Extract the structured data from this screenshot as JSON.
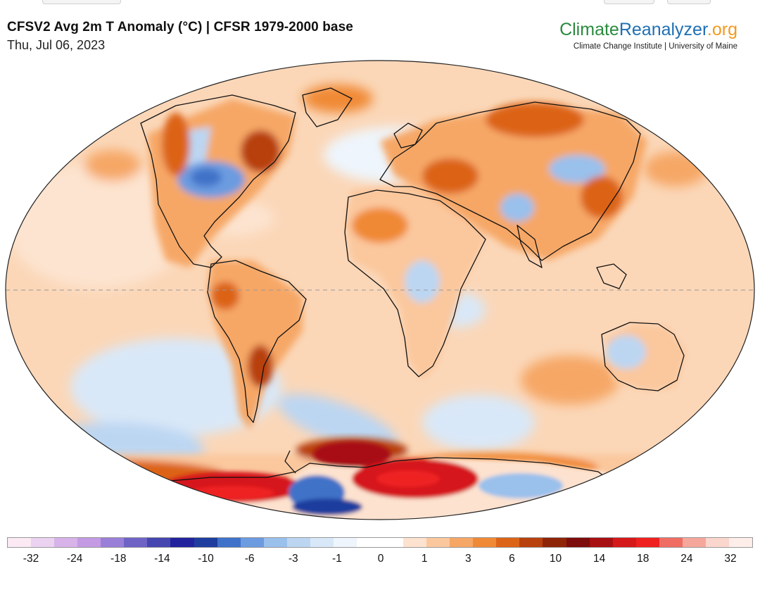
{
  "header": {
    "title": "CFSV2 Avg 2m T Anomaly (°C) | CFSR 1979-2000 base",
    "date": "Thu, Jul 06, 2023"
  },
  "brand": {
    "logo_part1": "Climate",
    "logo_part2": "Reanalyzer",
    "logo_part3": ".org",
    "tagline": "Climate Change Institute | University of Maine"
  },
  "colorbar": {
    "colors": [
      "#fbe9f3",
      "#ead2f0",
      "#d7b3ea",
      "#c39ae3",
      "#9a7fd8",
      "#6f64c6",
      "#4646b0",
      "#22239c",
      "#1e3d9e",
      "#3f72c8",
      "#6c9be0",
      "#9ac0ec",
      "#bcd6f2",
      "#d9e8f8",
      "#eef5fc",
      "#ffffff",
      "#ffffff",
      "#fde2cf",
      "#fbc79d",
      "#f6a766",
      "#f08936",
      "#dc6418",
      "#b8410e",
      "#8e2508",
      "#7d0c0c",
      "#a80f12",
      "#d5181a",
      "#ef2020",
      "#ef6d63",
      "#f6a79c",
      "#fbd6cd",
      "#fdeeea"
    ],
    "labels": [
      "-32",
      "-24",
      "-18",
      "-14",
      "-10",
      "-6",
      "-3",
      "-1",
      "0",
      "1",
      "3",
      "6",
      "10",
      "14",
      "18",
      "24",
      "32"
    ]
  },
  "map": {
    "projection": "Robinson-like",
    "equator_line": "dashed",
    "regions": [
      {
        "name": "antarctic-ross-sea-warm-anomaly",
        "anomaly_c": 18
      },
      {
        "name": "antarctic-weddell-warm-anomaly",
        "anomaly_c": 14
      },
      {
        "name": "antarctic-peninsula-cold-anomaly",
        "anomaly_c": -10
      },
      {
        "name": "central-north-america-cold-anomaly",
        "anomaly_c": -6
      },
      {
        "name": "eastern-canada-warm-anomaly",
        "anomaly_c": 10
      },
      {
        "name": "siberia-warm-anomaly",
        "anomaly_c": 6
      },
      {
        "name": "south-america-warm-anomaly",
        "anomaly_c": 6
      }
    ]
  }
}
